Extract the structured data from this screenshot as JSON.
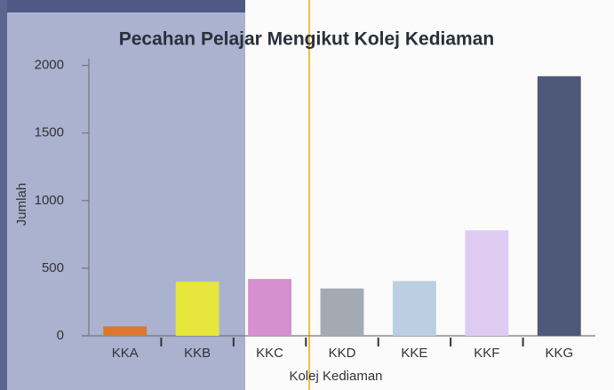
{
  "chart_data": {
    "type": "bar",
    "title": "Pecahan Pelajar Mengikut Kolej Kediaman",
    "x_label": "Kolej Kediaman",
    "y_label": "Jumlah",
    "categories": [
      "KKA",
      "KKB",
      "KKC",
      "KKD",
      "KKE",
      "KKF",
      "KKG"
    ],
    "values": [
      70,
      400,
      420,
      350,
      405,
      780,
      1920
    ],
    "colors": [
      "#d9782e",
      "#e6e63c",
      "#d690d0",
      "#a4aab2",
      "#bad0e2",
      "#decbf2",
      "#4e5879"
    ],
    "ylim": [
      0,
      2050
    ],
    "yticks": [
      0,
      500,
      1000,
      1500,
      2000
    ],
    "grid": false
  }
}
